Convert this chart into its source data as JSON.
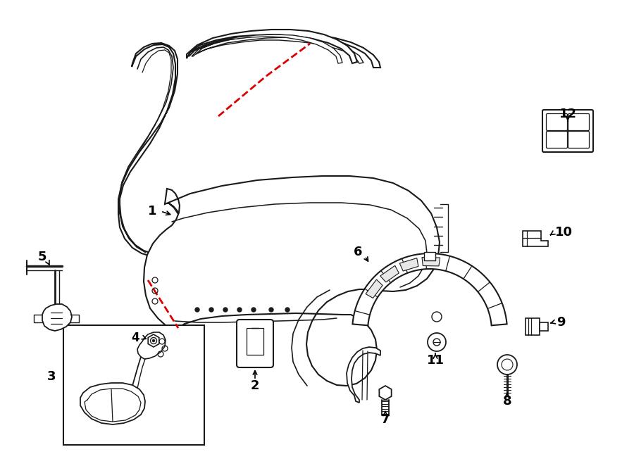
{
  "bg_color": "#ffffff",
  "lc": "#1a1a1a",
  "red": "#dd0000",
  "lw": 1.5
}
